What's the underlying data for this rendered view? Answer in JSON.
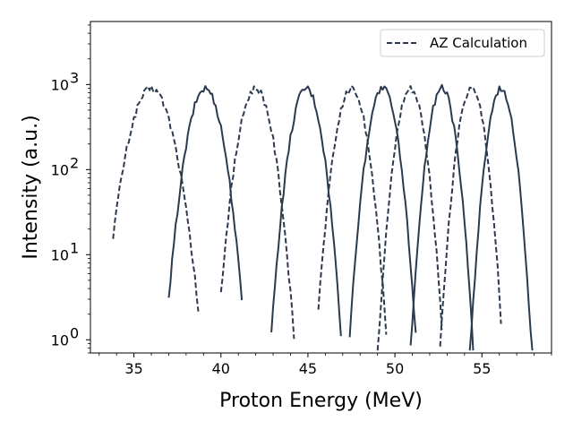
{
  "chart_data": {
    "type": "line",
    "title": "",
    "xlabel": "Proton Energy (MeV)",
    "ylabel": "Intensity (a.u.)",
    "xlim": [
      32.5,
      59.0
    ],
    "ylim": [
      0.7,
      5500
    ],
    "yscale": "log",
    "xticks": [
      35,
      40,
      45,
      50,
      55
    ],
    "yticks": [
      {
        "value": 1,
        "label": "10",
        "exp": "0"
      },
      {
        "value": 10,
        "label": "10",
        "exp": "1"
      },
      {
        "value": 100,
        "label": "10",
        "exp": "2"
      },
      {
        "value": 1000,
        "label": "10",
        "exp": "3"
      }
    ],
    "grid": false,
    "legend": {
      "position": "top-right",
      "entries": [
        "AZ Calculation"
      ]
    },
    "line_color": "#2b3a4e",
    "series": [
      {
        "style": "dashed",
        "center": 36.0,
        "peak": 900,
        "sigma": 0.78,
        "x_start": 33.8,
        "x_end": 38.7
      },
      {
        "style": "solid",
        "center": 39.1,
        "peak": 900,
        "sigma": 0.62,
        "x_start": 37.0,
        "x_end": 41.2
      },
      {
        "style": "dashed",
        "center": 42.0,
        "peak": 900,
        "sigma": 0.6,
        "x_start": 40.0,
        "x_end": 44.2
      },
      {
        "style": "solid",
        "center": 44.9,
        "peak": 900,
        "sigma": 0.55,
        "x_start": 42.9,
        "x_end": 46.9
      },
      {
        "style": "dashed",
        "center": 47.5,
        "peak": 900,
        "sigma": 0.55,
        "x_start": 45.6,
        "x_end": 49.5
      },
      {
        "style": "solid",
        "center": 49.3,
        "peak": 900,
        "sigma": 0.52,
        "x_start": 47.4,
        "x_end": 51.2
      },
      {
        "style": "dashed",
        "center": 50.9,
        "peak": 900,
        "sigma": 0.5,
        "x_start": 49.0,
        "x_end": 52.7
      },
      {
        "style": "solid",
        "center": 52.7,
        "peak": 900,
        "sigma": 0.48,
        "x_start": 50.9,
        "x_end": 54.5
      },
      {
        "style": "dashed",
        "center": 54.4,
        "peak": 900,
        "sigma": 0.48,
        "x_start": 52.6,
        "x_end": 56.1
      },
      {
        "style": "solid",
        "center": 56.1,
        "peak": 900,
        "sigma": 0.47,
        "x_start": 54.3,
        "x_end": 57.9
      }
    ]
  }
}
